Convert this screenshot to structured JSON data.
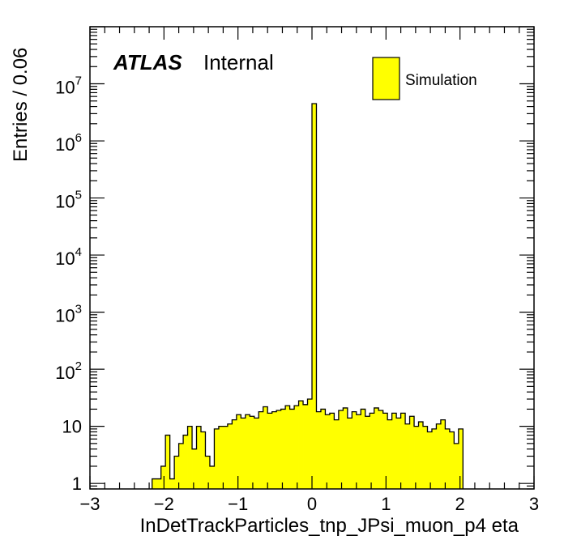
{
  "chart_data": {
    "type": "bar",
    "xlabel": "InDetTrackParticles_tnp_JPsi_muon_p4 eta",
    "ylabel": "Entries / 0.06",
    "xlim": [
      -3,
      3
    ],
    "ylim": [
      0.8,
      100000000
    ],
    "y_scale": "log",
    "x_ticks": [
      -3,
      -2,
      -1,
      0,
      1,
      2,
      3
    ],
    "x_tick_labels": [
      "−3",
      "−2",
      "−1",
      "0",
      "1",
      "2",
      "3"
    ],
    "y_ticks": [
      1,
      10,
      100,
      1000,
      10000,
      100000,
      1000000,
      10000000
    ],
    "y_tick_labels": [
      {
        "base": "1",
        "exp": ""
      },
      {
        "base": "10",
        "exp": ""
      },
      {
        "base": "10",
        "exp": "2"
      },
      {
        "base": "10",
        "exp": "3"
      },
      {
        "base": "10",
        "exp": "4"
      },
      {
        "base": "10",
        "exp": "5"
      },
      {
        "base": "10",
        "exp": "6"
      },
      {
        "base": "10",
        "exp": "7"
      }
    ],
    "bin_width": 0.06,
    "fill_color": "#ffff00",
    "line_color": "#000000",
    "legend_position": "top-right",
    "series": [
      {
        "name": "Simulation",
        "x": [
          -2.16,
          -2.1,
          -2.04,
          -1.98,
          -1.92,
          -1.86,
          -1.8,
          -1.74,
          -1.68,
          -1.62,
          -1.56,
          -1.5,
          -1.44,
          -1.38,
          -1.32,
          -1.26,
          -1.2,
          -1.14,
          -1.08,
          -1.02,
          -0.96,
          -0.9,
          -0.84,
          -0.78,
          -0.72,
          -0.66,
          -0.6,
          -0.54,
          -0.48,
          -0.42,
          -0.36,
          -0.3,
          -0.24,
          -0.18,
          -0.12,
          -0.06,
          0.0,
          0.06,
          0.12,
          0.18,
          0.24,
          0.3,
          0.36,
          0.42,
          0.48,
          0.54,
          0.6,
          0.66,
          0.72,
          0.78,
          0.84,
          0.9,
          0.96,
          1.02,
          1.08,
          1.14,
          1.2,
          1.26,
          1.32,
          1.38,
          1.44,
          1.5,
          1.56,
          1.62,
          1.68,
          1.74,
          1.8,
          1.86,
          1.92,
          1.98
        ],
        "values": [
          1.2,
          1.2,
          2,
          7,
          1.2,
          3,
          5,
          7,
          10,
          4,
          10,
          8,
          3,
          2,
          9,
          10,
          10,
          11,
          13,
          16,
          14,
          16,
          15,
          14,
          18,
          22,
          17,
          18,
          19,
          20,
          23,
          20,
          23,
          28,
          24,
          30,
          4500000,
          18,
          20,
          16,
          17,
          13,
          19,
          21,
          14,
          18,
          16,
          20,
          15,
          17,
          21,
          19,
          17,
          13,
          17,
          14,
          17,
          11,
          15,
          10,
          12,
          10,
          8,
          9,
          11,
          13,
          9,
          8,
          5,
          9
        ]
      }
    ],
    "annotations": {
      "atlas": "ATLAS",
      "status": "Internal"
    }
  }
}
